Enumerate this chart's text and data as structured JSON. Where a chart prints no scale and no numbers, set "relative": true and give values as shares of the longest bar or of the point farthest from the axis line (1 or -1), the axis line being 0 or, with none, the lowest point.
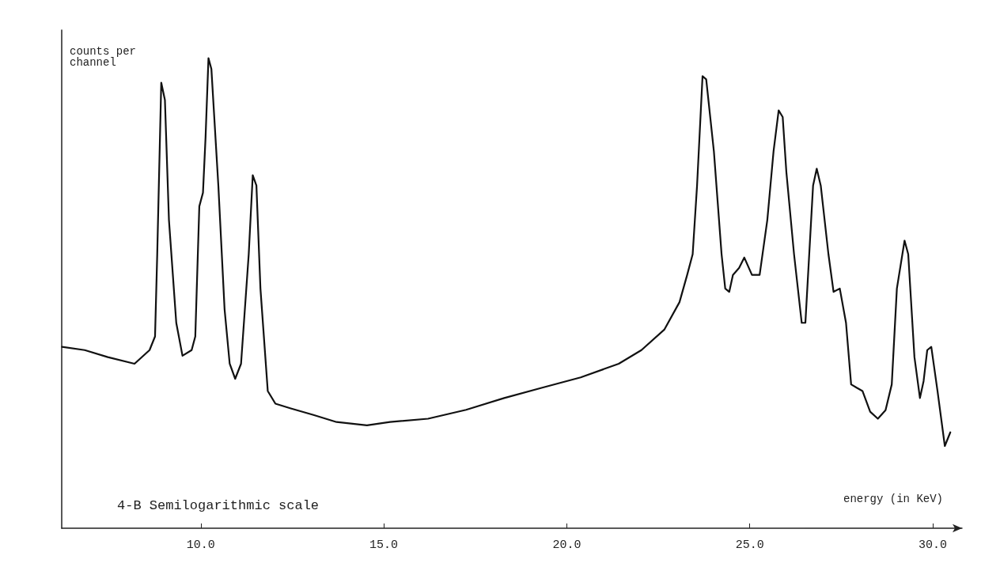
{
  "chart_data": {
    "type": "line",
    "relative": true,
    "xlabel": "energy (in KeV)",
    "ylabel": "counts per channel",
    "annotations": [
      "4-B Semilogarithmic scale"
    ],
    "xlim": [
      6.2,
      30.8
    ],
    "xticks": [
      {
        "value": 10,
        "label": "10.0"
      },
      {
        "value": 15,
        "label": "15.0"
      },
      {
        "value": 20,
        "label": "20.0"
      },
      {
        "value": 25,
        "label": "25.0"
      },
      {
        "value": 30,
        "label": "30.0"
      }
    ],
    "grid": false,
    "marker": "none",
    "line_style": "solid",
    "series": [
      {
        "color": "#111111",
        "x": [
          6.21,
          6.83,
          7.46,
          8.19,
          8.6,
          8.75,
          8.81,
          8.92,
          9.02,
          9.13,
          9.33,
          9.5,
          9.75,
          9.85,
          9.96,
          10.06,
          10.13,
          10.21,
          10.29,
          10.48,
          10.65,
          10.79,
          10.94,
          11.1,
          11.31,
          11.42,
          11.52,
          11.63,
          11.83,
          12.04,
          12.46,
          13.08,
          13.71,
          14.54,
          15.17,
          16.21,
          17.25,
          18.29,
          19.33,
          20.38,
          21.42,
          22.04,
          22.67,
          23.08,
          23.29,
          23.44,
          23.56,
          23.71,
          23.81,
          24.02,
          24.23,
          24.33,
          24.44,
          24.54,
          24.71,
          24.85,
          25.06,
          25.27,
          25.48,
          25.65,
          25.79,
          25.9,
          26.0,
          26.21,
          26.42,
          26.52,
          26.73,
          26.83,
          26.94,
          27.15,
          27.29,
          27.46,
          27.63,
          27.77,
          27.92,
          28.08,
          28.29,
          28.5,
          28.71,
          28.88,
          29.02,
          29.23,
          29.33,
          29.5,
          29.65,
          29.75,
          29.85,
          29.96,
          30.13,
          30.33,
          30.48
        ],
        "values": [
          0.386,
          0.379,
          0.364,
          0.35,
          0.379,
          0.408,
          0.583,
          0.948,
          0.911,
          0.656,
          0.437,
          0.367,
          0.379,
          0.408,
          0.685,
          0.714,
          0.831,
          1,
          0.977,
          0.729,
          0.466,
          0.35,
          0.318,
          0.35,
          0.583,
          0.751,
          0.729,
          0.51,
          0.292,
          0.265,
          0.255,
          0.241,
          0.226,
          0.219,
          0.226,
          0.233,
          0.252,
          0.277,
          0.299,
          0.321,
          0.35,
          0.379,
          0.423,
          0.481,
          0.539,
          0.583,
          0.729,
          0.962,
          0.955,
          0.802,
          0.583,
          0.51,
          0.503,
          0.539,
          0.554,
          0.576,
          0.539,
          0.539,
          0.656,
          0.802,
          0.889,
          0.875,
          0.758,
          0.583,
          0.437,
          0.437,
          0.729,
          0.765,
          0.729,
          0.583,
          0.503,
          0.51,
          0.437,
          0.306,
          0.299,
          0.292,
          0.248,
          0.233,
          0.251,
          0.306,
          0.51,
          0.612,
          0.583,
          0.364,
          0.277,
          0.313,
          0.379,
          0.386,
          0.292,
          0.175,
          0.204
        ]
      }
    ]
  }
}
